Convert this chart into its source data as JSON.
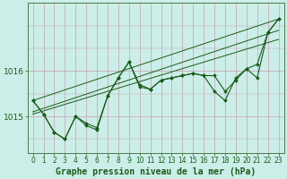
{
  "title": "Graphe pression niveau de la mer (hPa)",
  "bg_color": "#cceee8",
  "grid_color_v": "#c8a0b0",
  "grid_color_h": "#c8a0b0",
  "line_color": "#1a5c1a",
  "xlim": [
    -0.5,
    23.5
  ],
  "ylim": [
    1014.2,
    1017.5
  ],
  "yticks": [
    1015,
    1016
  ],
  "xticks": [
    0,
    1,
    2,
    3,
    4,
    5,
    6,
    7,
    8,
    9,
    10,
    11,
    12,
    13,
    14,
    15,
    16,
    17,
    18,
    19,
    20,
    21,
    22,
    23
  ],
  "series1_x": [
    0,
    1,
    2,
    3,
    4,
    5,
    6,
    7,
    8,
    9,
    10,
    11,
    12,
    13,
    14,
    15,
    16,
    17,
    18,
    19,
    20,
    21,
    22,
    23
  ],
  "series1_y": [
    1015.35,
    1015.05,
    1014.65,
    1014.5,
    1015.0,
    1014.8,
    1014.7,
    1015.45,
    1015.85,
    1016.2,
    1015.7,
    1015.6,
    1015.8,
    1015.85,
    1015.9,
    1015.95,
    1015.9,
    1015.55,
    1015.35,
    1015.85,
    1016.05,
    1015.85,
    1016.85,
    1017.15
  ],
  "series2_x": [
    0,
    1,
    2,
    3,
    4,
    5,
    6,
    7,
    8,
    9,
    10,
    11,
    12,
    13,
    14,
    15,
    16,
    17,
    18,
    19,
    20,
    21,
    22,
    23
  ],
  "series2_y": [
    1015.35,
    1015.05,
    1014.65,
    1014.5,
    1015.0,
    1014.85,
    1014.75,
    1015.45,
    1015.85,
    1016.2,
    1015.65,
    1015.6,
    1015.8,
    1015.85,
    1015.9,
    1015.95,
    1015.9,
    1015.9,
    1015.55,
    1015.8,
    1016.05,
    1016.15,
    1016.85,
    1017.15
  ],
  "trend_lines": [
    [
      1015.35,
      1017.15
    ],
    [
      1015.1,
      1016.9
    ],
    [
      1015.05,
      1016.7
    ]
  ],
  "axis_color": "#4a7a4a",
  "tick_color": "#1a5c1a",
  "xlabel_fontsize": 7,
  "ytick_fontsize": 6.5,
  "xtick_fontsize": 5.5
}
